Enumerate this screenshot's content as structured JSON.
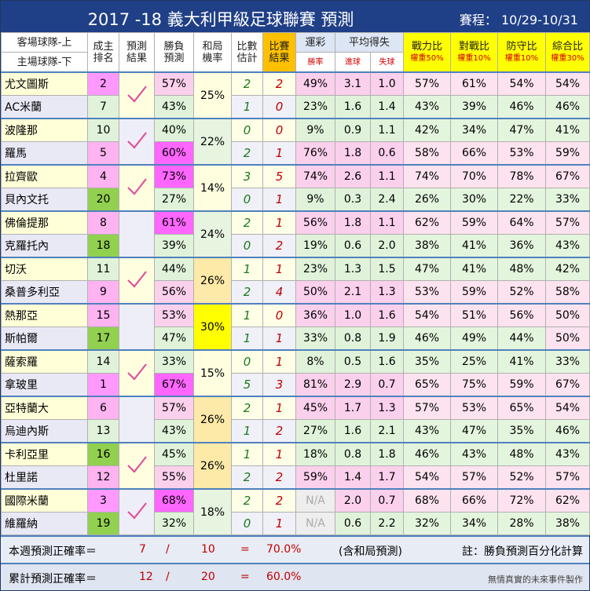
{
  "title": "2017 -18  義大利甲級足球聯賽  預測",
  "schedule": "賽程： 10/29-10/31",
  "header": {
    "team": [
      "客場球隊-上",
      "主場球隊-下"
    ],
    "rank": [
      "成主",
      "排名"
    ],
    "pred": [
      "預測",
      "結果"
    ],
    "win": [
      "勝負",
      "預測"
    ],
    "draw": [
      "和局",
      "機率"
    ],
    "est": [
      "比數",
      "估計"
    ],
    "score": [
      "比賽",
      "結果"
    ],
    "lottery": "運彩",
    "lottery_sub": "勝率",
    "avg": "平均得失",
    "gf": "進球",
    "ga": "失球",
    "power": "戰力比",
    "power_w": "權重50%",
    "h2h": "對戰比",
    "h2h_w": "權重10%",
    "defense": "防守比",
    "defense_w": "權重10%",
    "overall": "綜合比",
    "overall_w": "權重30%"
  },
  "matches": [
    {
      "draw": "25%",
      "correct": true,
      "teams": [
        {
          "name": "尤文圖斯",
          "rank": 2,
          "win": "57%",
          "est": 2,
          "score": 2,
          "lottery": "49%",
          "gf": 3.1,
          "ga": "1.0",
          "power": "57%",
          "h2h": "61%",
          "defense": "54%",
          "overall": "54%"
        },
        {
          "name": "AC米蘭",
          "rank": 7,
          "win": "43%",
          "est": 1,
          "score": 0,
          "lottery": "23%",
          "gf": 1.6,
          "ga": 1.4,
          "power": "43%",
          "h2h": "39%",
          "defense": "46%",
          "overall": "46%"
        }
      ]
    },
    {
      "draw": "22%",
      "correct": true,
      "teams": [
        {
          "name": "波隆那",
          "rank": 10,
          "win": "40%",
          "est": 0,
          "score": 0,
          "lottery": "9%",
          "gf": 0.9,
          "ga": 1.1,
          "power": "42%",
          "h2h": "34%",
          "defense": "47%",
          "overall": "41%"
        },
        {
          "name": "羅馬",
          "rank": 5,
          "win": "60%",
          "est": 2,
          "score": 1,
          "lottery": "76%",
          "gf": 1.8,
          "ga": 0.6,
          "power": "58%",
          "h2h": "66%",
          "defense": "53%",
          "overall": "59%"
        }
      ]
    },
    {
      "draw": "14%",
      "correct": true,
      "teams": [
        {
          "name": "拉齊歐",
          "rank": 4,
          "win": "73%",
          "est": 3,
          "score": 5,
          "lottery": "74%",
          "gf": 2.6,
          "ga": 1.1,
          "power": "74%",
          "h2h": "70%",
          "defense": "78%",
          "overall": "67%"
        },
        {
          "name": "貝內文托",
          "rank": 20,
          "win": "27%",
          "est": 0,
          "score": 1,
          "lottery": "9%",
          "gf": 0.3,
          "ga": 2.4,
          "power": "26%",
          "h2h": "30%",
          "defense": "22%",
          "overall": "33%"
        }
      ]
    },
    {
      "draw": "24%",
      "correct": false,
      "teams": [
        {
          "name": "佛倫提那",
          "rank": 8,
          "win": "61%",
          "est": 2,
          "score": 1,
          "lottery": "56%",
          "gf": 1.8,
          "ga": 1.1,
          "power": "62%",
          "h2h": "59%",
          "defense": "64%",
          "overall": "57%"
        },
        {
          "name": "克羅托內",
          "rank": 18,
          "win": "39%",
          "est": 0,
          "score": 2,
          "lottery": "19%",
          "gf": 0.6,
          "ga": "2.0",
          "power": "38%",
          "h2h": "41%",
          "defense": "36%",
          "overall": "43%"
        }
      ]
    },
    {
      "draw": "26%",
      "correct": true,
      "teams": [
        {
          "name": "切沃",
          "rank": 11,
          "win": "44%",
          "est": 1,
          "score": 1,
          "lottery": "23%",
          "gf": 1.3,
          "ga": 1.5,
          "power": "47%",
          "h2h": "41%",
          "defense": "48%",
          "overall": "42%"
        },
        {
          "name": "桑普多利亞",
          "rank": 9,
          "win": "56%",
          "est": 2,
          "score": 4,
          "lottery": "50%",
          "gf": 2.1,
          "ga": 1.3,
          "power": "53%",
          "h2h": "59%",
          "defense": "52%",
          "overall": "58%"
        }
      ]
    },
    {
      "draw": "30%",
      "correct": false,
      "teams": [
        {
          "name": "熱那亞",
          "rank": 15,
          "win": "53%",
          "est": 1,
          "score": 0,
          "lottery": "36%",
          "gf": "1.0",
          "ga": 1.6,
          "power": "54%",
          "h2h": "51%",
          "defense": "56%",
          "overall": "50%"
        },
        {
          "name": "斯帕爾",
          "rank": 17,
          "win": "47%",
          "est": 1,
          "score": 1,
          "lottery": "33%",
          "gf": 0.8,
          "ga": 1.9,
          "power": "46%",
          "h2h": "49%",
          "defense": "44%",
          "overall": "50%"
        }
      ]
    },
    {
      "draw": "15%",
      "correct": true,
      "teams": [
        {
          "name": "薩索羅",
          "rank": 14,
          "win": "33%",
          "est": 0,
          "score": 1,
          "lottery": "8%",
          "gf": 0.5,
          "ga": 1.6,
          "power": "35%",
          "h2h": "25%",
          "defense": "41%",
          "overall": "33%"
        },
        {
          "name": "拿玻里",
          "rank": 1,
          "win": "67%",
          "est": 5,
          "score": 3,
          "lottery": "81%",
          "gf": 2.9,
          "ga": 0.7,
          "power": "65%",
          "h2h": "75%",
          "defense": "59%",
          "overall": "67%"
        }
      ]
    },
    {
      "draw": "26%",
      "correct": false,
      "teams": [
        {
          "name": "亞特蘭大",
          "rank": 6,
          "win": "57%",
          "est": 2,
          "score": 1,
          "lottery": "45%",
          "gf": 1.7,
          "ga": 1.3,
          "power": "57%",
          "h2h": "53%",
          "defense": "65%",
          "overall": "54%"
        },
        {
          "name": "烏迪內斯",
          "rank": 13,
          "win": "43%",
          "est": 1,
          "score": 2,
          "lottery": "27%",
          "gf": 1.6,
          "ga": 2.1,
          "power": "43%",
          "h2h": "47%",
          "defense": "35%",
          "overall": "46%"
        }
      ]
    },
    {
      "draw": "26%",
      "correct": true,
      "teams": [
        {
          "name": "卡利亞里",
          "rank": 16,
          "win": "45%",
          "est": 1,
          "score": 1,
          "lottery": "18%",
          "gf": 0.8,
          "ga": 1.8,
          "power": "46%",
          "h2h": "43%",
          "defense": "48%",
          "overall": "43%"
        },
        {
          "name": "杜里諾",
          "rank": 12,
          "win": "55%",
          "est": 2,
          "score": 2,
          "lottery": "59%",
          "gf": 1.4,
          "ga": 1.7,
          "power": "54%",
          "h2h": "57%",
          "defense": "52%",
          "overall": "57%"
        }
      ]
    },
    {
      "draw": "18%",
      "correct": true,
      "teams": [
        {
          "name": "國際米蘭",
          "rank": 3,
          "win": "68%",
          "est": 2,
          "score": 2,
          "lottery": "N/A",
          "gf": "2.0",
          "ga": 0.7,
          "power": "68%",
          "h2h": "66%",
          "defense": "72%",
          "overall": "62%"
        },
        {
          "name": "維羅納",
          "rank": 19,
          "win": "32%",
          "est": 0,
          "score": 1,
          "lottery": "N/A",
          "gf": 0.6,
          "ga": 2.2,
          "power": "32%",
          "h2h": "34%",
          "defense": "28%",
          "overall": "38%"
        }
      ]
    }
  ],
  "footer": [
    {
      "label": "本週預測正確率＝",
      "hits": 7,
      "sep": "/",
      "total": 10,
      "eq": "=",
      "rate": "70.0%",
      "note": "(含和局預測)",
      "right": "註：勝負預測百分化計算"
    },
    {
      "label": "累計預測正確率＝",
      "hits": 12,
      "sep": "/",
      "total": 20,
      "eq": "=",
      "rate": "60.0%",
      "note": null,
      "right": "無情真實的未來事件製作"
    }
  ]
}
